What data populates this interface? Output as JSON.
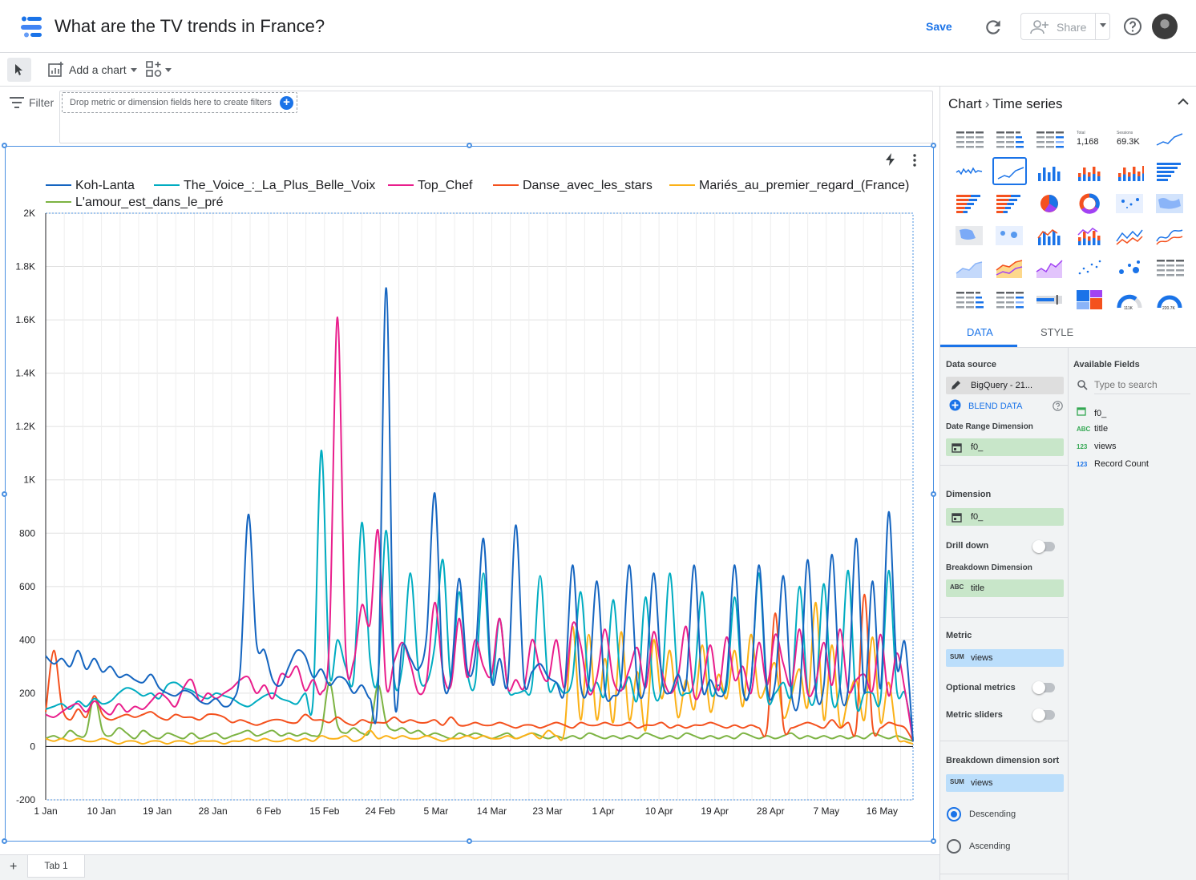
{
  "header": {
    "title": "What are the TV trends in France?",
    "save_label": "Save",
    "share_label": "Share"
  },
  "toolbar": {
    "add_chart_label": "Add a chart"
  },
  "filter": {
    "label": "Filter",
    "drop_hint": "Drop metric or dimension fields here to create filters"
  },
  "tabs_bar": {
    "add_label": "+",
    "tab1": "Tab 1"
  },
  "panel": {
    "crumb_root": "Chart",
    "crumb_current": "Time series",
    "tab_data": "DATA",
    "tab_style": "STYLE",
    "chart_type_tiles": {
      "scorecard_total_label": "Total",
      "scorecard_total_value": "1,168",
      "scorecard_sessions_label": "Sessions",
      "scorecard_sessions_value": "69.3K",
      "gauge1_label": "111K",
      "gauge2_label": "220.7K"
    },
    "data_source_title": "Data source",
    "data_source_value": "BigQuery - 21...",
    "blend_label": "BLEND DATA",
    "date_range_title": "Date Range Dimension",
    "date_range_value": "f0_",
    "dimension_title": "Dimension",
    "dimension_value": "f0_",
    "drill_down_label": "Drill down",
    "breakdown_title": "Breakdown Dimension",
    "breakdown_value": "title",
    "metric_title": "Metric",
    "metric_agg": "SUM",
    "metric_value": "views",
    "optional_metrics_label": "Optional metrics",
    "metric_sliders_label": "Metric sliders",
    "breakdown_sort_title": "Breakdown dimension sort",
    "sort_agg": "SUM",
    "sort_value": "views",
    "sort_desc": "Descending",
    "sort_asc": "Ascending",
    "available_fields_title": "Available Fields",
    "search_placeholder": "Type to search",
    "fields": [
      {
        "type": "date",
        "name": "f0_"
      },
      {
        "type": "ABC",
        "name": "title"
      },
      {
        "type": "123",
        "name": "views"
      },
      {
        "type": "123",
        "name": "Record Count"
      }
    ]
  },
  "colors": {
    "accent": "#1a73e8",
    "koh_lanta": "#1565c0",
    "the_voice": "#00acc1",
    "top_chef": "#e91e8c",
    "danse": "#f4511e",
    "maries": "#fbb117",
    "amour": "#7cb342"
  },
  "chart_data": {
    "type": "line",
    "title": "",
    "xlabel": "",
    "ylabel": "",
    "ylim": [
      -200,
      2000
    ],
    "y_ticks": [
      "-200",
      "0",
      "200",
      "400",
      "600",
      "800",
      "1K",
      "1.2K",
      "1.4K",
      "1.6K",
      "1.8K",
      "2K"
    ],
    "x_ticks": [
      "1 Jan",
      "10 Jan",
      "19 Jan",
      "28 Jan",
      "6 Feb",
      "15 Feb",
      "24 Feb",
      "5 Mar",
      "14 Mar",
      "23 Mar",
      "1 Apr",
      "10 Apr",
      "19 Apr",
      "28 Apr",
      "7 May",
      "16 May"
    ],
    "x_start": "1 Jan",
    "x_days": 141,
    "legend_position": "top",
    "grid": true,
    "series": [
      {
        "name": "Koh-Lanta",
        "color": "#1565c0",
        "values": [
          340,
          310,
          330,
          300,
          360,
          290,
          330,
          280,
          300,
          260,
          270,
          250,
          240,
          270,
          220,
          200,
          190,
          210,
          200,
          170,
          160,
          180,
          150,
          170,
          290,
          870,
          390,
          360,
          250,
          230,
          300,
          360,
          340,
          260,
          290,
          230,
          260,
          250,
          200,
          230,
          180,
          210,
          1720,
          200,
          380,
          330,
          290,
          420,
          950,
          270,
          260,
          630,
          290,
          340,
          780,
          250,
          330,
          240,
          830,
          250,
          280,
          310,
          260,
          240,
          210,
          680,
          230,
          240,
          620,
          210,
          190,
          250,
          680,
          230,
          240,
          650,
          260,
          200,
          270,
          230,
          680,
          220,
          250,
          190,
          250,
          680,
          220,
          240,
          680,
          220,
          240,
          640,
          200,
          190,
          700,
          210,
          230,
          720,
          220,
          220,
          780,
          200,
          620,
          220,
          880,
          300,
          390,
          20
        ]
      },
      {
        "name": "The_Voice_:_La_Plus_Belle_Voix",
        "color": "#00acc1",
        "values": [
          140,
          150,
          160,
          140,
          170,
          150,
          180,
          160,
          170,
          200,
          220,
          210,
          190,
          200,
          180,
          230,
          240,
          220,
          210,
          190,
          180,
          200,
          190,
          180,
          160,
          150,
          170,
          190,
          200,
          180,
          170,
          160,
          200,
          180,
          1110,
          280,
          400,
          300,
          260,
          840,
          330,
          260,
          810,
          250,
          300,
          650,
          280,
          240,
          380,
          700,
          250,
          580,
          280,
          240,
          650,
          240,
          480,
          220,
          200,
          210,
          230,
          640,
          230,
          240,
          200,
          260,
          580,
          230,
          240,
          200,
          550,
          230,
          260,
          180,
          560,
          210,
          230,
          650,
          240,
          200,
          250,
          580,
          210,
          230,
          220,
          560,
          210,
          240,
          650,
          190,
          200,
          240,
          200,
          600,
          210,
          200,
          610,
          180,
          230,
          660,
          160,
          200,
          200,
          180,
          660,
          210,
          200,
          30
        ]
      },
      {
        "name": "Top_Chef",
        "color": "#e91e8c",
        "values": [
          120,
          110,
          130,
          150,
          160,
          130,
          170,
          140,
          120,
          160,
          130,
          150,
          140,
          170,
          200,
          180,
          150,
          220,
          250,
          170,
          200,
          180,
          200,
          220,
          250,
          260,
          200,
          230,
          180,
          270,
          260,
          300,
          210,
          250,
          200,
          400,
          1610,
          370,
          320,
          530,
          460,
          810,
          230,
          320,
          390,
          310,
          200,
          250,
          540,
          280,
          230,
          480,
          260,
          400,
          300,
          270,
          480,
          220,
          250,
          220,
          400,
          290,
          250,
          400,
          220,
          460,
          380,
          200,
          260,
          440,
          250,
          210,
          290,
          370,
          220,
          430,
          280,
          200,
          260,
          450,
          190,
          230,
          380,
          210,
          410,
          250,
          300,
          200,
          390,
          230,
          420,
          310,
          230,
          440,
          200,
          240,
          390,
          230,
          440,
          210,
          250,
          270,
          210,
          420,
          190,
          350,
          210,
          20
        ]
      },
      {
        "name": "Danse_avec_les_stars",
        "color": "#f4511e",
        "values": [
          130,
          360,
          150,
          100,
          140,
          110,
          190,
          120,
          100,
          110,
          120,
          110,
          120,
          130,
          110,
          100,
          120,
          110,
          110,
          100,
          120,
          120,
          110,
          90,
          100,
          90,
          80,
          90,
          100,
          100,
          90,
          90,
          120,
          100,
          100,
          90,
          110,
          90,
          80,
          100,
          90,
          90,
          90,
          110,
          90,
          100,
          90,
          90,
          100,
          80,
          110,
          80,
          80,
          90,
          80,
          80,
          90,
          80,
          70,
          80,
          80,
          70,
          80,
          90,
          80,
          70,
          90,
          80,
          80,
          90,
          80,
          80,
          90,
          70,
          80,
          80,
          90,
          70,
          80,
          70,
          80,
          80,
          90,
          80,
          70,
          80,
          70,
          80,
          70,
          70,
          500,
          80,
          70,
          80,
          90,
          80,
          70,
          100,
          70,
          90,
          70,
          570,
          80,
          70,
          90,
          80,
          70,
          20
        ]
      },
      {
        "name": "Mariés_au_premier_regard_(France)",
        "color": "#fbb117",
        "values": [
          30,
          20,
          30,
          20,
          30,
          20,
          20,
          30,
          20,
          10,
          20,
          20,
          10,
          20,
          20,
          10,
          20,
          20,
          10,
          20,
          20,
          20,
          10,
          20,
          20,
          30,
          20,
          30,
          20,
          20,
          30,
          20,
          30,
          20,
          40,
          30,
          30,
          40,
          20,
          30,
          60,
          30,
          40,
          30,
          40,
          30,
          30,
          40,
          30,
          20,
          30,
          30,
          40,
          30,
          40,
          30,
          30,
          40,
          30,
          40,
          50,
          30,
          60,
          40,
          60,
          450,
          100,
          420,
          100,
          330,
          90,
          430,
          100,
          280,
          60,
          400,
          180,
          360,
          110,
          250,
          140,
          380,
          130,
          270,
          180,
          360,
          150,
          420,
          190,
          240,
          310,
          110,
          190,
          290,
          150,
          540,
          100,
          380,
          80,
          180,
          250,
          100,
          410,
          90,
          240,
          40,
          20,
          10
        ]
      },
      {
        "name": "L'amour_est_dans_le_pré",
        "color": "#7cb342",
        "values": [
          30,
          40,
          30,
          60,
          40,
          50,
          190,
          60,
          40,
          70,
          50,
          30,
          60,
          40,
          30,
          50,
          40,
          30,
          50,
          30,
          40,
          50,
          30,
          40,
          50,
          60,
          40,
          50,
          60,
          40,
          50,
          40,
          50,
          40,
          60,
          240,
          80,
          50,
          70,
          50,
          60,
          230,
          90,
          60,
          70,
          50,
          60,
          40,
          50,
          40,
          30,
          50,
          40,
          50,
          40,
          30,
          40,
          50,
          30,
          40,
          50,
          40,
          30,
          40,
          30,
          40,
          30,
          50,
          40,
          30,
          40,
          30,
          40,
          30,
          50,
          40,
          30,
          40,
          30,
          50,
          40,
          30,
          40,
          30,
          40,
          30,
          50,
          40,
          30,
          40,
          30,
          40,
          50,
          30,
          40,
          30,
          40,
          30,
          40,
          30,
          40,
          30,
          50,
          40,
          30,
          40,
          30,
          20
        ]
      }
    ]
  }
}
